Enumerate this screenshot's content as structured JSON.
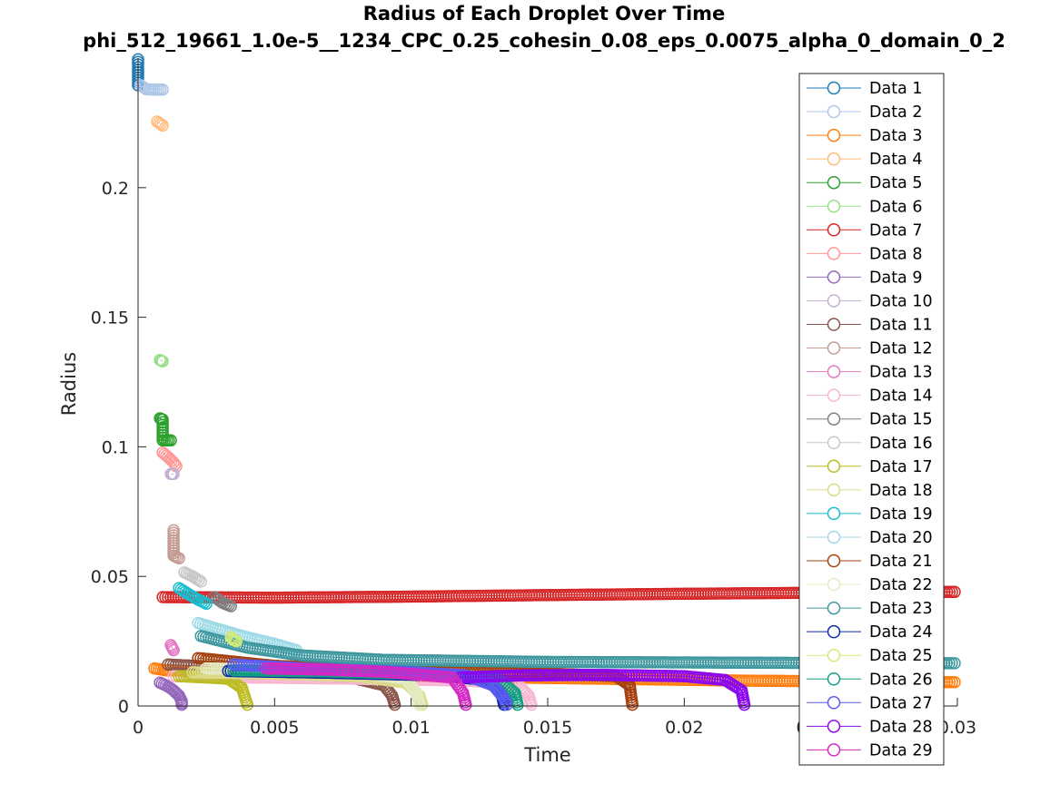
{
  "chart_data": {
    "type": "scatter",
    "title": "Radius of Each Droplet Over Time",
    "subtitle": "phi_512_19661_1.0e-5__1234_CPC_0.25_cohesin_0.08_eps_0.0075_alpha_0_domain_0_2",
    "xlabel": "Time",
    "ylabel": "Radius",
    "xlim": [
      0,
      0.03
    ],
    "ylim": [
      0,
      0.25
    ],
    "xticks": [
      "0",
      "0.005",
      "0.01",
      "0.015",
      "0.02",
      "0.025",
      "0.03"
    ],
    "yticks": [
      "0",
      "0.05",
      "0.1",
      "0.15",
      "0.2"
    ],
    "grid": false,
    "legend_position": "top-right",
    "series": [
      {
        "name": "Data 1",
        "color": "#1f77b4",
        "points": [
          [
            0.0,
            0.2495
          ],
          [
            0.0,
            0.2395
          ]
        ]
      },
      {
        "name": "Data 2",
        "color": "#aec7e8",
        "points": [
          [
            0.0001,
            0.2395
          ],
          [
            0.0003,
            0.238
          ],
          [
            0.0006,
            0.2378
          ],
          [
            0.0009,
            0.2378
          ]
        ]
      },
      {
        "name": "Data 3",
        "color": "#ff7f0e",
        "points": [
          [
            0.0006,
            0.0145
          ],
          [
            0.001,
            0.0138
          ],
          [
            0.003,
            0.0128
          ],
          [
            0.008,
            0.0118
          ],
          [
            0.015,
            0.0108
          ],
          [
            0.022,
            0.0098
          ],
          [
            0.0286,
            0.0092
          ],
          [
            0.0299,
            0.0092
          ]
        ]
      },
      {
        "name": "Data 4",
        "color": "#ffbb78",
        "points": [
          [
            0.0007,
            0.2255
          ],
          [
            0.0009,
            0.224
          ]
        ]
      },
      {
        "name": "Data 5",
        "color": "#2ca02c",
        "points": [
          [
            0.0008,
            0.111
          ],
          [
            0.0009,
            0.1105
          ],
          [
            0.0009,
            0.1025
          ],
          [
            0.0012,
            0.1025
          ]
        ]
      },
      {
        "name": "Data 6",
        "color": "#98df8a",
        "points": [
          [
            0.0008,
            0.1335
          ],
          [
            0.0009,
            0.133
          ]
        ]
      },
      {
        "name": "Data 7",
        "color": "#d62728",
        "points": [
          [
            0.0009,
            0.042
          ],
          [
            0.005,
            0.0418
          ],
          [
            0.01,
            0.0422
          ],
          [
            0.015,
            0.0428
          ],
          [
            0.02,
            0.0433
          ],
          [
            0.025,
            0.0437
          ],
          [
            0.0286,
            0.044
          ],
          [
            0.0299,
            0.044
          ]
        ]
      },
      {
        "name": "Data 8",
        "color": "#ff9896",
        "points": [
          [
            0.0009,
            0.0978
          ],
          [
            0.0011,
            0.096
          ],
          [
            0.0013,
            0.094
          ],
          [
            0.0014,
            0.0925
          ]
        ]
      },
      {
        "name": "Data 9",
        "color": "#9467bd",
        "points": [
          [
            0.0008,
            0.009
          ],
          [
            0.0011,
            0.0075
          ],
          [
            0.0013,
            0.006
          ],
          [
            0.0015,
            0.004
          ],
          [
            0.0016,
            0.0018
          ],
          [
            0.0016,
            0.0005
          ]
        ]
      },
      {
        "name": "Data 10",
        "color": "#c5b0d5",
        "points": [
          [
            0.0012,
            0.0895
          ],
          [
            0.0013,
            0.0895
          ]
        ]
      },
      {
        "name": "Data 11",
        "color": "#8c564b",
        "points": [
          [
            0.0011,
            0.016
          ],
          [
            0.003,
            0.015
          ],
          [
            0.006,
            0.013
          ],
          [
            0.008,
            0.0105
          ],
          [
            0.009,
            0.008
          ],
          [
            0.0093,
            0.004
          ],
          [
            0.0094,
            0.0005
          ]
        ]
      },
      {
        "name": "Data 12",
        "color": "#c49c94",
        "points": [
          [
            0.0013,
            0.0678
          ],
          [
            0.0013,
            0.058
          ],
          [
            0.0015,
            0.057
          ]
        ]
      },
      {
        "name": "Data 13",
        "color": "#e377c2",
        "points": [
          [
            0.0012,
            0.0235
          ],
          [
            0.0013,
            0.0215
          ]
        ]
      },
      {
        "name": "Data 14",
        "color": "#f7b6d2",
        "points": [
          [
            0.0013,
            0.0115
          ],
          [
            0.004,
            0.011
          ],
          [
            0.008,
            0.0105
          ],
          [
            0.012,
            0.0098
          ],
          [
            0.0139,
            0.0085
          ],
          [
            0.0143,
            0.004
          ],
          [
            0.0144,
            0.0005
          ]
        ]
      },
      {
        "name": "Data 15",
        "color": "#7f7f7f",
        "points": [
          [
            0.0028,
            0.042
          ],
          [
            0.0031,
            0.0398
          ],
          [
            0.0034,
            0.0385
          ]
        ]
      },
      {
        "name": "Data 16",
        "color": "#c7c7c7",
        "points": [
          [
            0.0017,
            0.0515
          ],
          [
            0.002,
            0.05
          ],
          [
            0.0023,
            0.048
          ]
        ]
      },
      {
        "name": "Data 17",
        "color": "#bcbd22",
        "points": [
          [
            0.0015,
            0.0115
          ],
          [
            0.0025,
            0.011
          ],
          [
            0.0033,
            0.0105
          ],
          [
            0.0038,
            0.007
          ],
          [
            0.004,
            0.0005
          ]
        ]
      },
      {
        "name": "Data 18",
        "color": "#dbdb8d",
        "points": [
          [
            0.002,
            0.013
          ],
          [
            0.005,
            0.0125
          ],
          [
            0.008,
            0.0115
          ],
          [
            0.0098,
            0.009
          ],
          [
            0.0103,
            0.004
          ],
          [
            0.0104,
            0.0005
          ]
        ]
      },
      {
        "name": "Data 19",
        "color": "#17becf",
        "points": [
          [
            0.0015,
            0.0455
          ],
          [
            0.0018,
            0.0435
          ],
          [
            0.0022,
            0.041
          ],
          [
            0.0025,
            0.0395
          ]
        ]
      },
      {
        "name": "Data 20",
        "color": "#9edae5",
        "points": [
          [
            0.0022,
            0.032
          ],
          [
            0.003,
            0.0295
          ],
          [
            0.004,
            0.0265
          ],
          [
            0.005,
            0.024
          ],
          [
            0.0058,
            0.0215
          ]
        ]
      },
      {
        "name": "Data 21",
        "color": "#a5410e",
        "points": [
          [
            0.0022,
            0.0185
          ],
          [
            0.005,
            0.0155
          ],
          [
            0.01,
            0.0135
          ],
          [
            0.015,
            0.0125
          ],
          [
            0.0175,
            0.0115
          ],
          [
            0.018,
            0.008
          ],
          [
            0.0181,
            0.0005
          ]
        ]
      },
      {
        "name": "Data 22",
        "color": "#e4ebc2",
        "points": [
          [
            0.0025,
            0.0145
          ],
          [
            0.005,
            0.014
          ],
          [
            0.008,
            0.013
          ],
          [
            0.0098,
            0.0105
          ],
          [
            0.0102,
            0.005
          ],
          [
            0.0103,
            0.0005
          ]
        ]
      },
      {
        "name": "Data 23",
        "color": "#3f979f",
        "points": [
          [
            0.0023,
            0.027
          ],
          [
            0.004,
            0.0225
          ],
          [
            0.006,
            0.0195
          ],
          [
            0.009,
            0.0178
          ],
          [
            0.015,
            0.017
          ],
          [
            0.02,
            0.0168
          ],
          [
            0.025,
            0.0166
          ],
          [
            0.0299,
            0.0165
          ]
        ]
      },
      {
        "name": "Data 24",
        "color": "#0a2ba8",
        "points": [
          [
            0.0033,
            0.0135
          ],
          [
            0.007,
            0.0128
          ],
          [
            0.011,
            0.0118
          ],
          [
            0.0128,
            0.01
          ],
          [
            0.0133,
            0.005
          ],
          [
            0.0134,
            0.0005
          ]
        ]
      },
      {
        "name": "Data 25",
        "color": "#d0ea77",
        "points": [
          [
            0.0034,
            0.0265
          ],
          [
            0.0035,
            0.0255
          ],
          [
            0.0036,
            0.025
          ]
        ]
      },
      {
        "name": "Data 26",
        "color": "#12a080",
        "points": [
          [
            0.0035,
            0.0138
          ],
          [
            0.007,
            0.0133
          ],
          [
            0.011,
            0.0122
          ],
          [
            0.0132,
            0.0105
          ],
          [
            0.0138,
            0.005
          ],
          [
            0.0139,
            0.0005
          ]
        ]
      },
      {
        "name": "Data 27",
        "color": "#5b5bf2",
        "points": [
          [
            0.0035,
            0.016
          ],
          [
            0.006,
            0.0145
          ],
          [
            0.01,
            0.013
          ],
          [
            0.012,
            0.0118
          ],
          [
            0.013,
            0.008
          ],
          [
            0.0134,
            0.003
          ],
          [
            0.0135,
            0.0005
          ]
        ]
      },
      {
        "name": "Data 28",
        "color": "#8b07ef",
        "points": [
          [
            0.0118,
            0.011
          ],
          [
            0.014,
            0.0118
          ],
          [
            0.017,
            0.012
          ],
          [
            0.02,
            0.0115
          ],
          [
            0.0215,
            0.01
          ],
          [
            0.0221,
            0.006
          ],
          [
            0.0222,
            0.0005
          ]
        ]
      },
      {
        "name": "Data 29",
        "color": "#d428c6",
        "points": [
          [
            0.0047,
            0.0145
          ],
          [
            0.007,
            0.014
          ],
          [
            0.009,
            0.0132
          ],
          [
            0.0115,
            0.011
          ],
          [
            0.0119,
            0.005
          ],
          [
            0.012,
            0.0005
          ]
        ]
      }
    ]
  }
}
